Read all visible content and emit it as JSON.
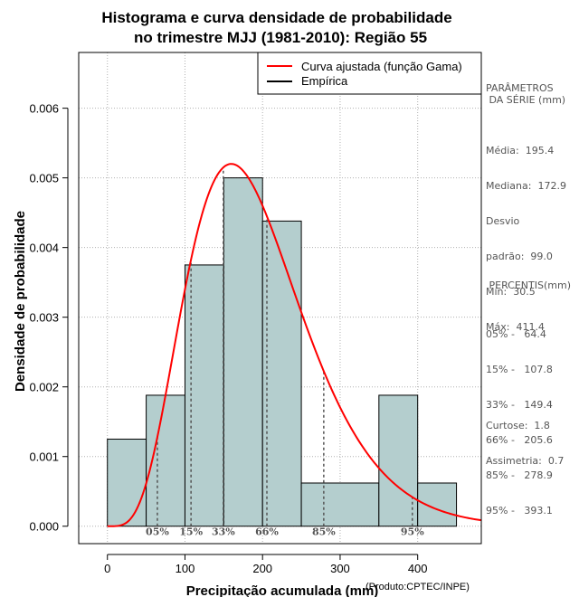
{
  "chart_data": {
    "type": "histogram",
    "title_line1": "Histograma e curva densidade de probabilidade",
    "title_line2": "no trimestre MJJ (1981-2010): Região 55",
    "xlabel": "Precipitação acumulada (mm)",
    "ylabel": "Densidade de probabilidade",
    "credit": "(Produto:CPTEC/INPE)",
    "xlim": [
      -37,
      482
    ],
    "ylim": [
      -0.00025,
      0.0068
    ],
    "x_ticks": [
      0,
      100,
      200,
      300,
      400
    ],
    "x_tick_labels": [
      "0",
      "100",
      "200",
      "300",
      "400"
    ],
    "y_ticks": [
      0.0,
      0.001,
      0.002,
      0.003,
      0.004,
      0.005,
      0.006
    ],
    "y_tick_labels": [
      "0.000",
      "0.001",
      "0.002",
      "0.003",
      "0.004",
      "0.005",
      "0.006"
    ],
    "grid": true,
    "bins": [
      {
        "x0": 0,
        "x1": 50,
        "density": 0.00125
      },
      {
        "x0": 50,
        "x1": 100,
        "density": 0.00188
      },
      {
        "x0": 100,
        "x1": 150,
        "density": 0.00375
      },
      {
        "x0": 150,
        "x1": 200,
        "density": 0.005
      },
      {
        "x0": 200,
        "x1": 250,
        "density": 0.00438
      },
      {
        "x0": 250,
        "x1": 350,
        "density": 0.00062
      },
      {
        "x0": 350,
        "x1": 400,
        "density": 0.00188
      },
      {
        "x0": 400,
        "x1": 450,
        "density": 0.00062
      }
    ],
    "gamma_fit": {
      "shape": 5.5,
      "scale": 35.5
    },
    "percentile_lines": [
      {
        "label": "05%",
        "x": 64.4
      },
      {
        "label": "15%",
        "x": 107.8
      },
      {
        "label": "33%",
        "x": 149.4
      },
      {
        "label": "66%",
        "x": 205.6
      },
      {
        "label": "85%",
        "x": 278.9
      },
      {
        "label": "95%",
        "x": 393.1
      }
    ],
    "legend": [
      {
        "label": "Curva ajustada (função Gama)",
        "color": "#ff0000"
      },
      {
        "label": "Empírica",
        "color": "#000000"
      }
    ],
    "legend_position": "top-right",
    "colors": {
      "bar_fill": "#b4cece",
      "curve": "#ff0000",
      "grid": "#b0b0b0",
      "percentile": "#555555"
    }
  },
  "panel": {
    "params_title_1": "PARÂMETROS",
    "params_title_2": " DA SÉRIE (mm)",
    "params": [
      "Média:  195.4",
      "Mediana:  172.9",
      "Desvio",
      "padrão:  99.0",
      "Mín:  30.5",
      "Máx:  411.4"
    ],
    "percentis_title": " PERCENTIS(mm)",
    "percentis": [
      "05% -   64.4",
      "15% -   107.8",
      "33% -   149.4",
      "66% -   205.6",
      "85% -   278.9",
      "95% -   393.1"
    ],
    "stats": [
      "Curtose:  1.8",
      "Assimetria:  0.7"
    ]
  }
}
